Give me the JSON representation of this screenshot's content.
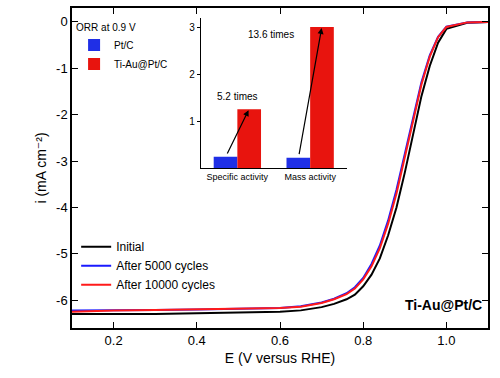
{
  "chart_data": [
    {
      "type": "line",
      "x_label": "E (V versus RHE)",
      "y_label": "i (mA cm⁻²)",
      "x": [
        0.1,
        0.2,
        0.3,
        0.4,
        0.5,
        0.6,
        0.65,
        0.7,
        0.73,
        0.76,
        0.78,
        0.8,
        0.82,
        0.84,
        0.86,
        0.88,
        0.9,
        0.92,
        0.94,
        0.96,
        0.98,
        1.0,
        1.05,
        1.1
      ],
      "series": [
        {
          "name": "Initial",
          "color": "#000000",
          "values": [
            -6.3,
            -6.3,
            -6.3,
            -6.28,
            -6.27,
            -6.25,
            -6.22,
            -6.15,
            -6.08,
            -5.98,
            -5.88,
            -5.7,
            -5.45,
            -5.1,
            -4.6,
            -4.0,
            -3.25,
            -2.4,
            -1.6,
            -0.95,
            -0.45,
            -0.15,
            -0.02,
            0
          ]
        },
        {
          "name": "After 5000 cycles",
          "color": "#1a1aff",
          "values": [
            -6.22,
            -6.22,
            -6.21,
            -6.2,
            -6.19,
            -6.17,
            -6.13,
            -6.05,
            -5.97,
            -5.85,
            -5.72,
            -5.52,
            -5.22,
            -4.82,
            -4.28,
            -3.62,
            -2.85,
            -2.05,
            -1.3,
            -0.72,
            -0.32,
            -0.1,
            -0.01,
            0
          ]
        },
        {
          "name": "After 10000 cycles",
          "color": "#ff1a1a",
          "values": [
            -6.25,
            -6.22,
            -6.21,
            -6.2,
            -6.19,
            -6.17,
            -6.14,
            -6.06,
            -5.98,
            -5.87,
            -5.75,
            -5.55,
            -5.27,
            -4.88,
            -4.35,
            -3.7,
            -2.92,
            -2.1,
            -1.35,
            -0.75,
            -0.33,
            -0.11,
            -0.01,
            0
          ]
        }
      ],
      "xlim": [
        0.1,
        1.1
      ],
      "xticks": [
        0.2,
        0.4,
        0.6,
        0.8,
        {
          "value": 1,
          "label": "1.0"
        }
      ],
      "ylim": [
        -6.6,
        0.3
      ],
      "yticks": [
        -6,
        -5,
        -4,
        -3,
        -2,
        -1,
        0
      ],
      "grid": false,
      "legend": "bottom left",
      "annotations": [
        "Ti-Au@Pt/C"
      ]
    },
    {
      "type": "bar",
      "legend_title": "ORR at 0.9 V",
      "categories": [
        "Specific activity",
        "Mass activity"
      ],
      "series": [
        {
          "name": "Pt/C",
          "color": "#1f2fe6",
          "values": [
            0.24,
            0.22
          ]
        },
        {
          "name": "Ti-Au@Pt/C",
          "color": "#e8140e",
          "values": [
            1.25,
            3.0
          ]
        }
      ],
      "ylim": [
        0,
        3.2
      ],
      "yticks": [
        1,
        2,
        3
      ],
      "grid": false,
      "legend": "top left",
      "annotations": [
        {
          "category": "Specific activity",
          "text": "5.2 times"
        },
        {
          "category": "Mass activity",
          "text": "13.6 times"
        }
      ]
    }
  ]
}
